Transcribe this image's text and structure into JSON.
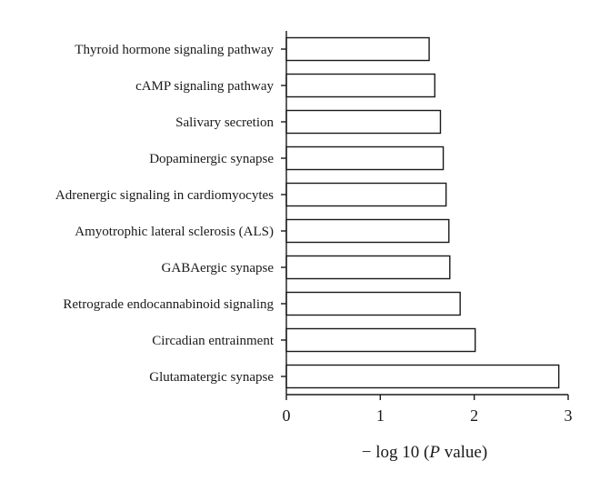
{
  "chart_data": {
    "type": "bar",
    "orientation": "horizontal",
    "categories": [
      "Thyroid hormone signaling pathway",
      "cAMP signaling pathway",
      "Salivary secretion",
      "Dopaminergic synapse",
      "Adrenergic signaling in cardiomyocytes",
      "Amyotrophic lateral sclerosis (ALS)",
      "GABAergic synapse",
      "Retrograde endocannabinoid signaling",
      "Circadian entrainment",
      "Glutamatergic synapse"
    ],
    "values": [
      1.52,
      1.58,
      1.64,
      1.67,
      1.7,
      1.73,
      1.74,
      1.85,
      2.01,
      2.9
    ],
    "xlabel": {
      "prefix": "− log 10 (",
      "italic": "P",
      "suffix": " value)"
    },
    "ylabel": "",
    "xlim": [
      0,
      3
    ],
    "xticks": [
      "0",
      "1",
      "2",
      "3"
    ],
    "grid": false,
    "colors": {
      "bar_fill": "#ffffff",
      "bar_stroke": "#1a1a1a"
    }
  }
}
